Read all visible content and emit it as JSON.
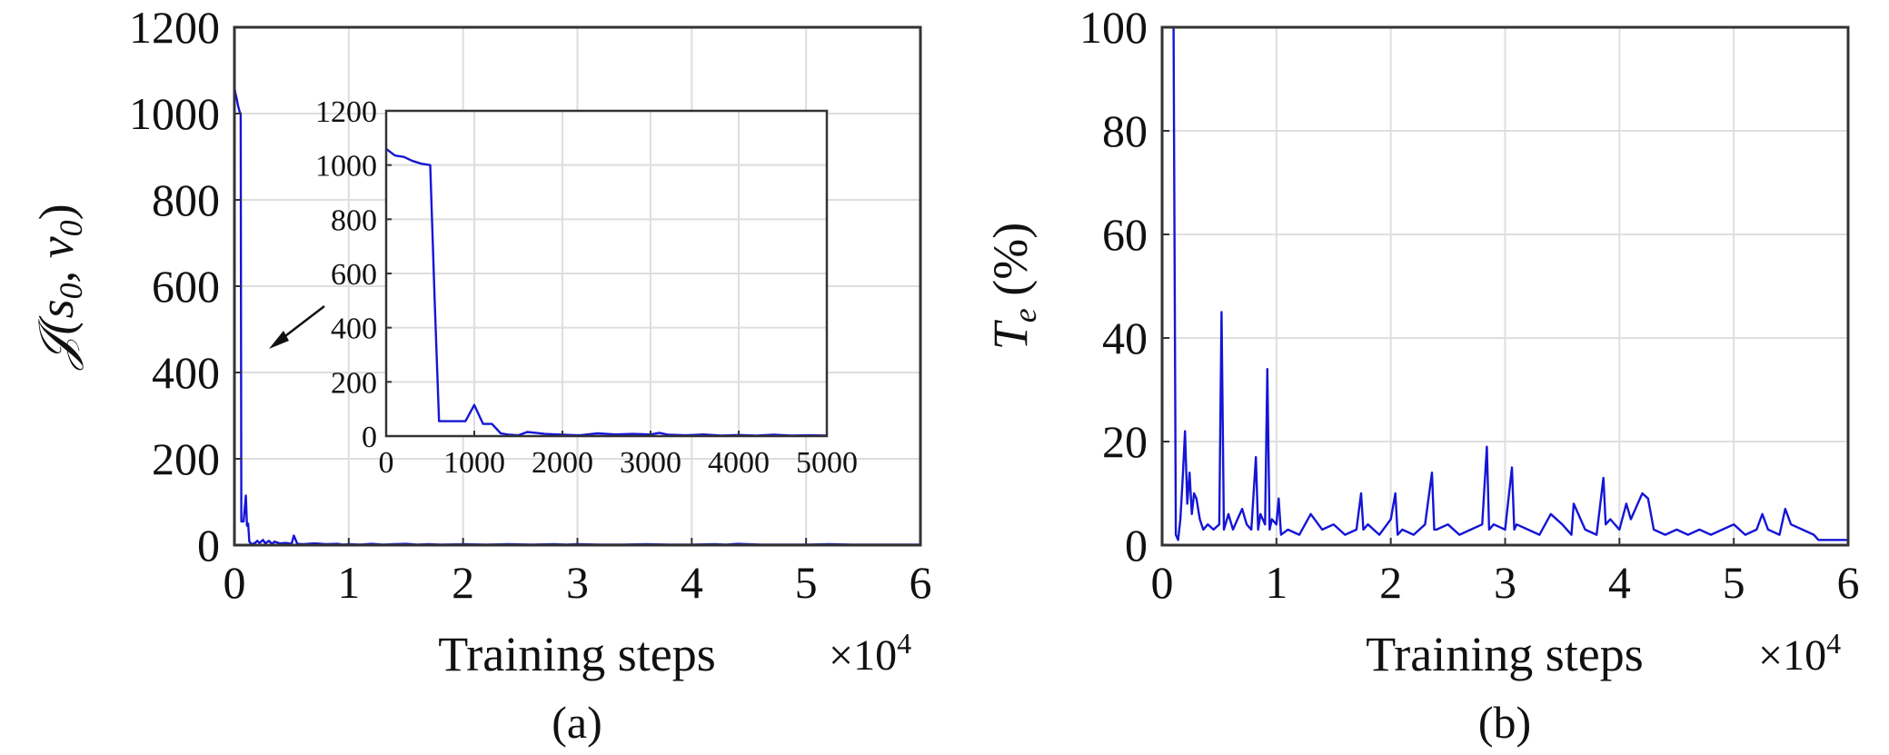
{
  "colors": {
    "line": "#1515d6",
    "grid": "#dedede",
    "axis": "#333333"
  },
  "chart_data": [
    {
      "id": "a",
      "type": "line",
      "panel_label": "(a)",
      "xlabel": "Training steps",
      "x_multiplier_label": "×10",
      "x_multiplier_exp": "4",
      "ylabel_main": "𝒥(s",
      "ylabel_sub1": "0",
      "ylabel_mid": ", v",
      "ylabel_sub2": "0",
      "ylabel_end": ")",
      "xlim": [
        0,
        6
      ],
      "ylim": [
        0,
        1200
      ],
      "xticks": [
        "0",
        "1",
        "2",
        "3",
        "4",
        "5",
        "6"
      ],
      "yticks": [
        "0",
        "200",
        "400",
        "600",
        "800",
        "1000",
        "1200"
      ],
      "grid": true,
      "series": [
        {
          "x": [
            0,
            0.01,
            0.02,
            0.03,
            0.04,
            0.05,
            0.055,
            0.06,
            0.07,
            0.08,
            0.1,
            0.11,
            0.12,
            0.13,
            0.15,
            0.18,
            0.2,
            0.22,
            0.25,
            0.27,
            0.3,
            0.33,
            0.35,
            0.4,
            0.45,
            0.5,
            0.52,
            0.55,
            0.6,
            0.7,
            0.8,
            0.9,
            0.95,
            1.0,
            1.1,
            1.2,
            1.3,
            1.4,
            1.5,
            1.6,
            1.7,
            1.8,
            2.0,
            2.2,
            2.4,
            2.6,
            2.8,
            2.9,
            3.0,
            3.2,
            3.4,
            3.6,
            3.8,
            4.0,
            4.2,
            4.3,
            4.4,
            4.6,
            4.8,
            5.0,
            5.2,
            5.4,
            5.6,
            5.8,
            6.0
          ],
          "y": [
            1060,
            1045,
            1035,
            1020,
            1010,
            1000,
            1000,
            55,
            55,
            55,
            115,
            45,
            50,
            8,
            2,
            5,
            10,
            5,
            12,
            4,
            10,
            3,
            8,
            4,
            5,
            3,
            22,
            3,
            2,
            4,
            2,
            3,
            1,
            2,
            1,
            3,
            1,
            2,
            3,
            1,
            2,
            1,
            2,
            1,
            2,
            1,
            2,
            1,
            2,
            1,
            1,
            2,
            1,
            1,
            2,
            1,
            3,
            1,
            1,
            1,
            2,
            1,
            1,
            1,
            1
          ]
        }
      ],
      "inset": {
        "xlim": [
          0,
          5000
        ],
        "ylim": [
          0,
          1200
        ],
        "xticks": [
          "0",
          "1000",
          "2000",
          "3000",
          "4000",
          "5000"
        ],
        "yticks": [
          "0",
          "200",
          "400",
          "600",
          "800",
          "1000",
          "1200"
        ],
        "grid": true,
        "series": [
          {
            "x": [
              0,
              100,
              200,
              300,
              400,
              500,
              550,
              600,
              700,
              800,
              900,
              1000,
              1100,
              1200,
              1300,
              1400,
              1500,
              1600,
              1700,
              1800,
              2000,
              2200,
              2400,
              2600,
              2800,
              3000,
              3100,
              3200,
              3400,
              3600,
              3800,
              4000,
              4200,
              4400,
              4600,
              4800,
              5000
            ],
            "y": [
              1060,
              1035,
              1030,
              1015,
              1005,
              1000,
              500,
              55,
              55,
              55,
              55,
              115,
              45,
              45,
              10,
              5,
              3,
              15,
              12,
              8,
              5,
              3,
              10,
              6,
              8,
              6,
              12,
              5,
              3,
              6,
              2,
              4,
              2,
              5,
              2,
              3,
              2
            ]
          }
        ]
      }
    },
    {
      "id": "b",
      "type": "line",
      "panel_label": "(b)",
      "xlabel": "Training steps",
      "x_multiplier_label": "×10",
      "x_multiplier_exp": "4",
      "ylabel_main": "T",
      "ylabel_sub": "e",
      "ylabel_unit": " (%)",
      "xlim": [
        0,
        6
      ],
      "ylim": [
        0,
        100
      ],
      "xticks": [
        "0",
        "1",
        "2",
        "3",
        "4",
        "5",
        "6"
      ],
      "yticks": [
        "0",
        "20",
        "40",
        "60",
        "80",
        "100"
      ],
      "grid": true,
      "series": [
        {
          "x": [
            0,
            0.1,
            0.12,
            0.14,
            0.16,
            0.18,
            0.2,
            0.22,
            0.24,
            0.26,
            0.28,
            0.3,
            0.33,
            0.36,
            0.4,
            0.45,
            0.5,
            0.52,
            0.54,
            0.58,
            0.62,
            0.66,
            0.7,
            0.74,
            0.78,
            0.82,
            0.84,
            0.86,
            0.9,
            0.92,
            0.94,
            0.96,
            1.0,
            1.02,
            1.04,
            1.1,
            1.2,
            1.3,
            1.4,
            1.5,
            1.6,
            1.7,
            1.74,
            1.76,
            1.8,
            1.9,
            2.0,
            2.04,
            2.06,
            2.1,
            2.2,
            2.3,
            2.36,
            2.38,
            2.4,
            2.5,
            2.6,
            2.7,
            2.8,
            2.84,
            2.86,
            2.9,
            3.0,
            3.06,
            3.08,
            3.1,
            3.2,
            3.3,
            3.4,
            3.5,
            3.58,
            3.6,
            3.7,
            3.8,
            3.86,
            3.88,
            3.92,
            4.0,
            4.06,
            4.1,
            4.2,
            4.25,
            4.3,
            4.4,
            4.5,
            4.6,
            4.7,
            4.8,
            4.9,
            5.0,
            5.1,
            5.2,
            5.25,
            5.3,
            5.4,
            5.45,
            5.5,
            5.6,
            5.7,
            5.74,
            5.8,
            5.9,
            6.0
          ],
          "y": [
            100,
            100,
            2,
            1,
            5,
            13,
            22,
            8,
            14,
            6,
            10,
            9,
            5,
            3,
            4,
            3,
            4,
            45,
            3,
            6,
            3,
            5,
            7,
            4,
            3,
            17,
            3,
            6,
            4,
            34,
            3,
            5,
            4,
            9,
            2,
            3,
            2,
            6,
            3,
            4,
            2,
            3,
            10,
            3,
            4,
            2,
            5,
            10,
            2,
            3,
            2,
            4,
            14,
            3,
            3,
            4,
            2,
            3,
            4,
            19,
            3,
            4,
            3,
            15,
            3,
            4,
            3,
            2,
            6,
            4,
            2,
            8,
            3,
            2,
            13,
            4,
            5,
            3,
            8,
            5,
            10,
            9,
            3,
            2,
            3,
            2,
            3,
            2,
            3,
            4,
            2,
            3,
            6,
            3,
            2,
            7,
            4,
            3,
            2,
            1,
            1,
            1,
            1
          ]
        }
      ]
    }
  ]
}
